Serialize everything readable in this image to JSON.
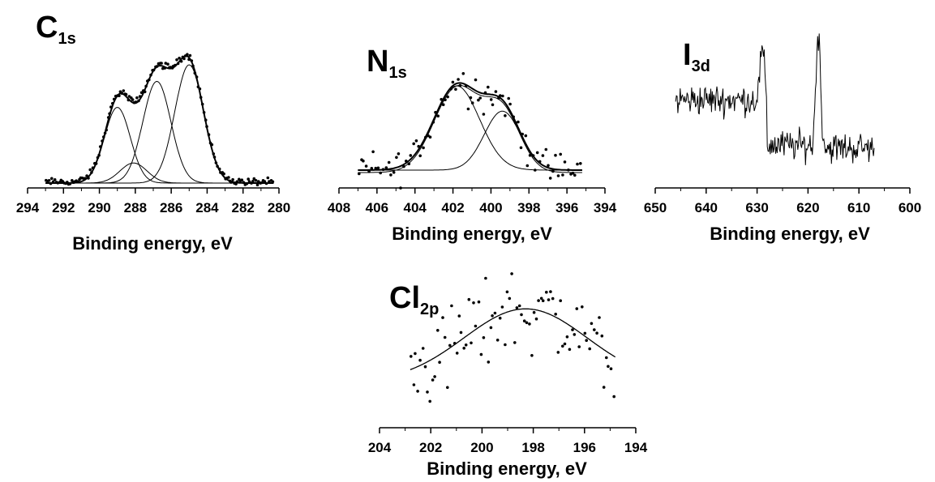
{
  "chart_data": [
    {
      "type": "line",
      "title": "C1s",
      "title_element": "C",
      "title_sub": "1s",
      "xlabel": "Binding energy, eV",
      "ylabel": "",
      "x_reversed": true,
      "xlim": [
        294,
        280
      ],
      "x_ticks": [
        294,
        292,
        290,
        288,
        286,
        284,
        282,
        280
      ],
      "grid": false,
      "components": [
        {
          "center": 289.0,
          "amp": 0.64,
          "sigma": 0.72
        },
        {
          "center": 288.1,
          "amp": 0.17,
          "sigma": 0.75
        },
        {
          "center": 286.8,
          "amp": 0.86,
          "sigma": 0.78
        },
        {
          "center": 285.0,
          "amp": 1.0,
          "sigma": 0.8
        }
      ],
      "data_range": [
        293,
        280.3
      ],
      "points": 150,
      "noise": 0.025,
      "pt_offset": 0.01
    },
    {
      "type": "line",
      "title": "N1s",
      "title_element": "N",
      "title_sub": "1s",
      "xlabel": "Binding energy, eV",
      "ylabel": "",
      "x_reversed": true,
      "xlim": [
        408,
        394
      ],
      "x_ticks": [
        408,
        406,
        404,
        402,
        400,
        398,
        396,
        394
      ],
      "grid": false,
      "components": [
        {
          "center": 401.8,
          "amp": 0.8,
          "sigma": 1.2
        },
        {
          "center": 399.4,
          "amp": 0.56,
          "sigma": 0.95
        }
      ],
      "data_range": [
        407,
        395.2
      ],
      "points": 90,
      "noise": 0.15,
      "pt_offset": 0.0
    },
    {
      "type": "line",
      "title": "I3d",
      "title_element": "I",
      "title_sub": "3d",
      "xlabel": "Binding energy, eV",
      "ylabel": "",
      "x_reversed": true,
      "xlim": [
        650,
        600
      ],
      "x_ticks": [
        650,
        640,
        630,
        620,
        610,
        600
      ],
      "grid": false,
      "segments": [
        {
          "from": 646,
          "to": 631,
          "level": 0.6
        },
        {
          "from": 631,
          "to": 628,
          "level": 0.6,
          "peak": 1.0,
          "peak_at": 629.0
        },
        {
          "from": 628,
          "to": 619,
          "level": 0.22
        },
        {
          "from": 619,
          "to": 616.5,
          "level": 0.22,
          "peak": 1.15,
          "peak_at": 618.0
        },
        {
          "from": 616.5,
          "to": 607,
          "level": 0.2
        }
      ],
      "noise": 0.11,
      "points": 260
    },
    {
      "type": "scatter",
      "title": "Cl2p",
      "title_element": "Cl",
      "title_sub": "2p",
      "xlabel": "Binding energy, eV",
      "ylabel": "",
      "x_reversed": true,
      "xlim": [
        204,
        194
      ],
      "x_ticks": [
        204,
        202,
        200,
        198,
        196,
        194
      ],
      "grid": false,
      "components": [
        {
          "center": 198.3,
          "amp": 0.55,
          "sigma": 2.4
        }
      ],
      "baseline": 0.2,
      "data_range": [
        202.8,
        194.8
      ],
      "points": 85,
      "noise": 0.32,
      "pt_offset": 0.0
    }
  ]
}
